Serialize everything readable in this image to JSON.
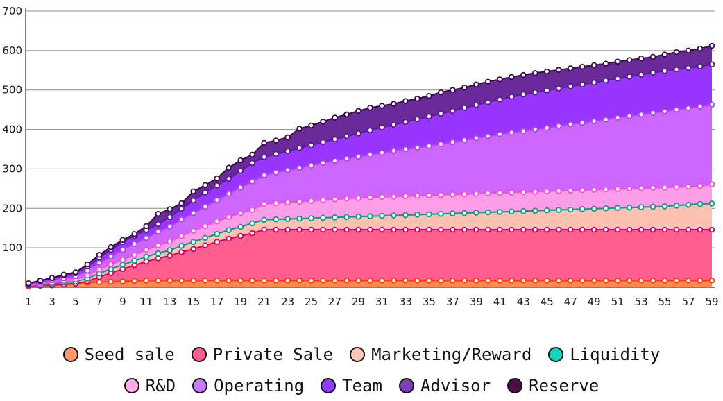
{
  "chart_data": {
    "type": "area",
    "stacked": true,
    "x": [
      1,
      2,
      3,
      4,
      5,
      6,
      7,
      8,
      9,
      10,
      11,
      12,
      13,
      14,
      15,
      16,
      17,
      18,
      19,
      20,
      21,
      22,
      23,
      24,
      25,
      26,
      27,
      28,
      29,
      30,
      31,
      32,
      33,
      34,
      35,
      36,
      37,
      38,
      39,
      40,
      41,
      42,
      43,
      44,
      45,
      46,
      47,
      48,
      49,
      50,
      51,
      52,
      53,
      54,
      55,
      56,
      57,
      58,
      59
    ],
    "x_tick_labels": [
      "1",
      "3",
      "5",
      "7",
      "9",
      "11",
      "13",
      "15",
      "17",
      "19",
      "21",
      "23",
      "25",
      "27",
      "29",
      "31",
      "33",
      "35",
      "37",
      "39",
      "41",
      "43",
      "45",
      "47",
      "49",
      "51",
      "53",
      "55",
      "57",
      "59"
    ],
    "y_tick_labels": [
      "100",
      "200",
      "300",
      "400",
      "500",
      "600",
      "700"
    ],
    "ylim": [
      0,
      700
    ],
    "grid": "horizontal",
    "legend_position": "bottom",
    "cumulative_totals": {
      "Seed sale": [
        2,
        4,
        6,
        8,
        10,
        12,
        13,
        14,
        15,
        16,
        17,
        17,
        17,
        17,
        17,
        17,
        17,
        17,
        17,
        17,
        17,
        17,
        17,
        17,
        17,
        17,
        17,
        17,
        17,
        17,
        17,
        17,
        17,
        17,
        17,
        17,
        17,
        17,
        17,
        17,
        17,
        17,
        17,
        17,
        17,
        17,
        17,
        17,
        17,
        17,
        17,
        17,
        17,
        17,
        17,
        17,
        17,
        17,
        17
      ],
      "Private Sale": [
        3,
        4,
        5,
        7,
        9,
        15,
        26,
        36,
        46,
        56,
        65,
        73,
        80,
        89,
        97,
        106,
        115,
        123,
        130,
        137,
        146,
        146,
        146,
        146,
        146,
        146,
        146,
        146,
        146,
        146,
        146,
        146,
        146,
        146,
        146,
        146,
        146,
        146,
        146,
        146,
        146,
        146,
        146,
        146,
        146,
        146,
        146,
        146,
        146,
        146,
        146,
        146,
        146,
        146,
        146,
        146,
        146,
        146,
        146
      ],
      "Marketing/Reward": [
        4,
        6,
        9,
        12,
        14,
        22,
        35,
        46,
        57,
        67,
        77,
        86,
        94,
        105,
        115,
        125,
        135,
        145,
        153,
        162,
        171,
        172,
        173,
        174,
        175,
        176,
        177,
        178,
        179,
        180,
        181,
        182,
        183,
        184,
        185,
        186,
        187,
        188,
        189,
        190,
        191,
        192,
        193,
        194,
        195,
        196,
        197,
        198,
        199,
        200,
        201,
        202,
        203,
        204,
        205,
        207,
        209,
        211,
        212
      ],
      "Liquidity": [
        4,
        6,
        9,
        12,
        14,
        22,
        35,
        46,
        57,
        67,
        77,
        86,
        94,
        105,
        115,
        125,
        135,
        145,
        153,
        162,
        171,
        172,
        173,
        174,
        175,
        176,
        177,
        178,
        179,
        180,
        181,
        182,
        183,
        184,
        185,
        186,
        187,
        188,
        189,
        190,
        191,
        192,
        193,
        194,
        195,
        196,
        197,
        198,
        199,
        200,
        201,
        202,
        203,
        204,
        205,
        207,
        209,
        211,
        212
      ],
      "R&D": [
        5,
        8,
        12,
        16,
        20,
        30,
        45,
        58,
        70,
        82,
        95,
        106,
        116,
        130,
        143,
        155,
        167,
        178,
        188,
        196,
        211,
        213,
        215,
        217,
        219,
        221,
        223,
        225,
        226,
        228,
        229,
        230,
        231,
        232,
        233,
        234,
        235,
        236,
        237,
        238,
        239,
        240,
        241,
        242,
        243,
        244,
        245,
        246,
        247,
        248,
        249,
        250,
        251,
        252,
        253,
        254,
        255,
        257,
        261
      ],
      "Operating": [
        7,
        12,
        18,
        23,
        28,
        42,
        62,
        78,
        95,
        110,
        125,
        141,
        154,
        172,
        188,
        204,
        221,
        237,
        253,
        268,
        284,
        291,
        297,
        303,
        309,
        315,
        321,
        326,
        331,
        336,
        341,
        346,
        350,
        354,
        358,
        363,
        368,
        373,
        378,
        383,
        388,
        392,
        396,
        400,
        404,
        409,
        413,
        417,
        421,
        425,
        430,
        434,
        438,
        442,
        446,
        450,
        454,
        458,
        463
      ],
      "Team": [
        9,
        16,
        23,
        30,
        36,
        53,
        75,
        95,
        115,
        130,
        145,
        160,
        178,
        199,
        220,
        240,
        258,
        275,
        295,
        315,
        330,
        338,
        345,
        353,
        360,
        368,
        375,
        383,
        390,
        398,
        405,
        412,
        419,
        426,
        433,
        440,
        447,
        455,
        462,
        469,
        476,
        483,
        489,
        494,
        499,
        504,
        509,
        514,
        519,
        524,
        529,
        534,
        539,
        544,
        548,
        552,
        556,
        560,
        565
      ],
      "Advisor": [
        9,
        16,
        23,
        30,
        36,
        53,
        75,
        95,
        115,
        130,
        145,
        160,
        178,
        199,
        220,
        240,
        258,
        275,
        295,
        315,
        330,
        338,
        345,
        353,
        360,
        368,
        375,
        383,
        390,
        398,
        405,
        412,
        419,
        426,
        433,
        440,
        447,
        455,
        462,
        469,
        476,
        483,
        489,
        494,
        499,
        504,
        509,
        514,
        519,
        524,
        529,
        534,
        539,
        544,
        548,
        552,
        556,
        560,
        565
      ],
      "Reserve": [
        10,
        17,
        24,
        32,
        38,
        58,
        82,
        102,
        120,
        135,
        155,
        186,
        198,
        213,
        243,
        259,
        276,
        303,
        322,
        336,
        366,
        372,
        380,
        402,
        410,
        420,
        430,
        438,
        447,
        455,
        460,
        465,
        472,
        478,
        485,
        494,
        500,
        506,
        514,
        521,
        527,
        533,
        538,
        543,
        547,
        551,
        555,
        559,
        563,
        567,
        572,
        576,
        580,
        584,
        590,
        596,
        600,
        605,
        612
      ]
    },
    "series": [
      {
        "name": "Seed sale",
        "fill": "#ff8a55",
        "stroke": "#ff3d0a",
        "legend_color": "#ff9a66"
      },
      {
        "name": "Private Sale",
        "fill": "#ff5e8e",
        "stroke": "#d6005c",
        "legend_color": "#ff5f8f"
      },
      {
        "name": "Marketing/Reward",
        "fill": "#ffc2b0",
        "stroke": "#c8906a",
        "legend_color": "#ffc8b4"
      },
      {
        "name": "Liquidity",
        "fill": "#12c8b6",
        "stroke": "#0a9a8c",
        "legend_color": "#1ad2c0"
      },
      {
        "name": "R&D",
        "fill": "#ff9ee8",
        "stroke": "#f24ed4",
        "legend_color": "#ffa8ea"
      },
      {
        "name": "Operating",
        "fill": "#cc66ff",
        "stroke": "#b040f0",
        "legend_color": "#c77cff"
      },
      {
        "name": "Team",
        "fill": "#9a35ff",
        "stroke": "#6a00e0",
        "legend_color": "#8c3dff"
      },
      {
        "name": "Advisor",
        "fill": "#7a3cb8",
        "stroke": "#5a2090",
        "legend_color": "#7d3fb5"
      },
      {
        "name": "Reserve",
        "fill": "#6a2a9a",
        "stroke": "#3a0a50",
        "legend_color": "#4d0d45"
      }
    ]
  }
}
